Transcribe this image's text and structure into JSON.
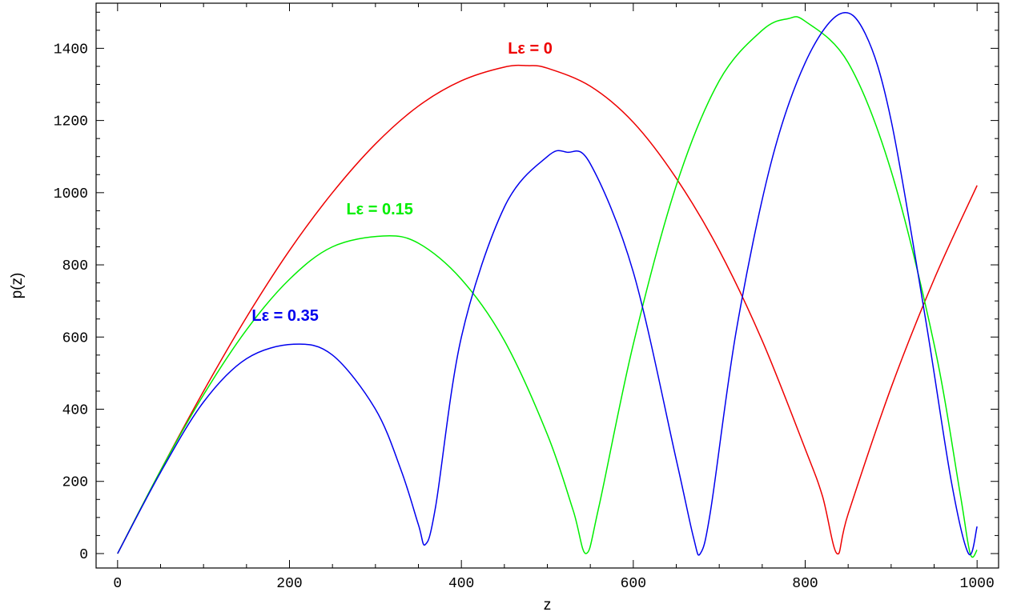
{
  "chart_data": {
    "type": "line",
    "xlabel": "z",
    "ylabel": "p(z)",
    "xlim": [
      -25,
      1025
    ],
    "ylim": [
      -40,
      1525
    ],
    "xticks": [
      0,
      200,
      400,
      600,
      800,
      1000
    ],
    "yticks": [
      0,
      200,
      400,
      600,
      800,
      1000,
      1200,
      1400
    ],
    "grid": false,
    "series": [
      {
        "name": "Lε = 0",
        "color": "#ee0000",
        "label_pos": [
          480,
          1385
        ],
        "x": [
          0,
          50,
          100,
          150,
          200,
          250,
          300,
          350,
          400,
          450,
          477,
          500,
          550,
          600,
          650,
          700,
          750,
          800,
          820,
          837,
          850,
          900,
          950,
          1000
        ],
        "y": [
          0,
          230,
          450,
          655,
          840,
          1000,
          1135,
          1240,
          1310,
          1348,
          1352,
          1345,
          1295,
          1195,
          1040,
          840,
          590,
          290,
          160,
          0,
          110,
          460,
          760,
          1020
        ]
      },
      {
        "name": "Lε = 0.15",
        "color": "#00ee00",
        "label_pos": [
          305,
          940
        ],
        "x": [
          0,
          50,
          100,
          150,
          200,
          250,
          309,
          350,
          400,
          450,
          500,
          530,
          545,
          560,
          600,
          650,
          700,
          750,
          780,
          800,
          850,
          900,
          950,
          980,
          992,
          1000
        ],
        "y": [
          0,
          230,
          440,
          620,
          760,
          850,
          880,
          860,
          760,
          590,
          330,
          120,
          0,
          130,
          580,
          1020,
          1310,
          1450,
          1482,
          1475,
          1360,
          1060,
          580,
          170,
          0,
          10
        ]
      },
      {
        "name": "Lε = 0.35",
        "color": "#0000ee",
        "label_pos": [
          195,
          645
        ],
        "x": [
          0,
          50,
          100,
          150,
          205,
          250,
          300,
          330,
          350,
          358,
          370,
          400,
          450,
          500,
          523,
          550,
          600,
          650,
          670,
          678,
          690,
          720,
          760,
          800,
          840,
          870,
          900,
          940,
          970,
          990,
          1000
        ],
        "y": [
          0,
          225,
          420,
          540,
          580,
          550,
          400,
          230,
          80,
          25,
          130,
          600,
          960,
          1100,
          1112,
          1080,
          780,
          260,
          45,
          0,
          120,
          620,
          1080,
          1360,
          1495,
          1440,
          1200,
          650,
          200,
          0,
          75
        ]
      }
    ]
  }
}
